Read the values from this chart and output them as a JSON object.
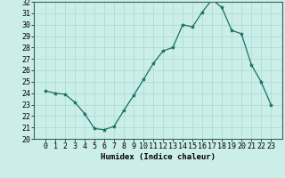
{
  "x": [
    0,
    1,
    2,
    3,
    4,
    5,
    6,
    7,
    8,
    9,
    10,
    11,
    12,
    13,
    14,
    15,
    16,
    17,
    18,
    19,
    20,
    21,
    22,
    23
  ],
  "y": [
    24.2,
    24.0,
    23.9,
    23.2,
    22.2,
    20.9,
    20.8,
    21.1,
    22.5,
    23.8,
    25.2,
    26.6,
    27.7,
    28.0,
    30.0,
    29.8,
    31.1,
    32.2,
    31.5,
    29.5,
    29.2,
    26.5,
    25.0,
    23.0
  ],
  "line_color": "#1a7060",
  "marker": "*",
  "bg_color": "#cceee8",
  "grid_color": "#aadddd",
  "xlabel": "Humidex (Indice chaleur)",
  "ylim": [
    20,
    32
  ],
  "yticks": [
    20,
    21,
    22,
    23,
    24,
    25,
    26,
    27,
    28,
    29,
    30,
    31,
    32
  ],
  "xticks": [
    0,
    1,
    2,
    3,
    4,
    5,
    6,
    7,
    8,
    9,
    10,
    11,
    12,
    13,
    14,
    15,
    16,
    17,
    18,
    19,
    20,
    21,
    22,
    23
  ],
  "label_fontsize": 6.5,
  "tick_fontsize": 6.0
}
